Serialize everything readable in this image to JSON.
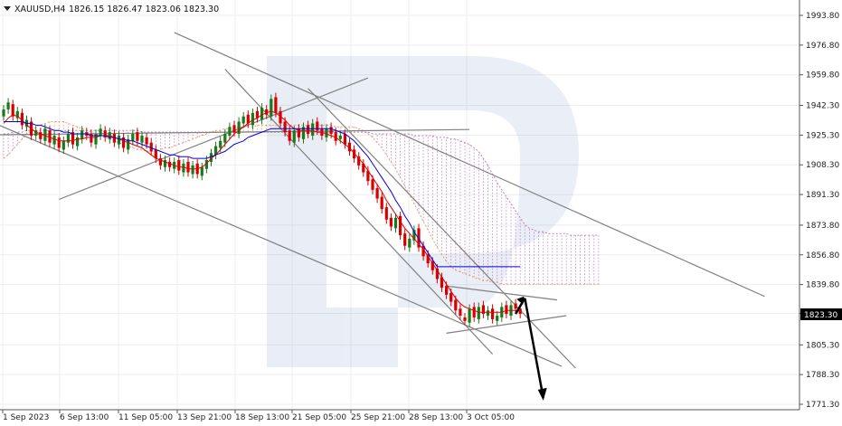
{
  "header": {
    "symbol": "XAUUSD,H4",
    "ohlc": "1826.15 1826.47 1823.06 1823.30"
  },
  "chart_data": {
    "type": "candlestick",
    "symbol": "XAUUSD",
    "timeframe": "H4",
    "ylim": [
      1766.0,
      2002.0
    ],
    "y_ticks": [
      "1993.80",
      "1976.80",
      "1959.80",
      "1942.30",
      "1925.30",
      "1908.30",
      "1891.30",
      "1873.80",
      "1856.80",
      "1839.80",
      "1823.30",
      "1805.30",
      "1788.30",
      "1771.30"
    ],
    "x_ticks": [
      "1 Sep 2023",
      "6 Sep 13:00",
      "11 Sep 05:00",
      "13 Sep 21:00",
      "18 Sep 13:00",
      "21 Sep 05:00",
      "25 Sep 21:00",
      "28 Sep 13:00",
      "3 Oct 05:00"
    ],
    "current_price": "1823.30",
    "grid": true,
    "colors": {
      "bull": "#1a7a1a",
      "bear": "#d60000",
      "tenkan": "#e00000",
      "kijun": "#0000e0",
      "span_a": "#e8a070",
      "span_b": "#c080c0",
      "trendline": "#808080",
      "arrow": "#000000"
    },
    "candles_close": [
      1940,
      1944,
      1936,
      1939,
      1931,
      1934,
      1925,
      1928,
      1923,
      1929,
      1921,
      1925,
      1918,
      1922,
      1926,
      1920,
      1924,
      1928,
      1925,
      1921,
      1926,
      1929,
      1924,
      1927,
      1921,
      1925,
      1918,
      1923,
      1926,
      1922,
      1925,
      1920,
      1916,
      1912,
      1908,
      1911,
      1907,
      1910,
      1905,
      1909,
      1904,
      1908,
      1903,
      1907,
      1911,
      1915,
      1919,
      1922,
      1926,
      1930,
      1927,
      1933,
      1936,
      1932,
      1938,
      1935,
      1941,
      1937,
      1946,
      1938,
      1932,
      1927,
      1922,
      1928,
      1924,
      1930,
      1926,
      1932,
      1928,
      1925,
      1929,
      1926,
      1922,
      1925,
      1920,
      1916,
      1912,
      1908,
      1904,
      1899,
      1894,
      1889,
      1883,
      1877,
      1873,
      1878,
      1868,
      1862,
      1866,
      1871,
      1861,
      1856,
      1852,
      1848,
      1843,
      1838,
      1834,
      1830,
      1825,
      1822,
      1819,
      1826,
      1821,
      1827,
      1823,
      1825,
      1820,
      1822,
      1827,
      1823,
      1828,
      1826,
      1823
    ],
    "candles_open": [
      1936,
      1940,
      1943,
      1935,
      1938,
      1930,
      1933,
      1925,
      1927,
      1922,
      1928,
      1920,
      1924,
      1917,
      1921,
      1927,
      1919,
      1923,
      1927,
      1926,
      1920,
      1925,
      1928,
      1923,
      1926,
      1920,
      1924,
      1917,
      1922,
      1927,
      1921,
      1924,
      1921,
      1917,
      1912,
      1907,
      1910,
      1906,
      1911,
      1904,
      1910,
      1903,
      1909,
      1902,
      1906,
      1910,
      1914,
      1918,
      1921,
      1925,
      1931,
      1926,
      1932,
      1937,
      1931,
      1939,
      1934,
      1940,
      1936,
      1947,
      1939,
      1933,
      1928,
      1921,
      1929,
      1923,
      1931,
      1925,
      1933,
      1929,
      1924,
      1930,
      1927,
      1923,
      1926,
      1921,
      1917,
      1913,
      1909,
      1905,
      1900,
      1895,
      1890,
      1884,
      1878,
      1872,
      1879,
      1869,
      1861,
      1865,
      1872,
      1862,
      1857,
      1853,
      1849,
      1844,
      1839,
      1835,
      1831,
      1826,
      1821,
      1818,
      1827,
      1820,
      1828,
      1822,
      1826,
      1819,
      1821,
      1828,
      1822,
      1829,
      1826
    ],
    "tenkan": [
      1932,
      1935,
      1937,
      1936,
      1934,
      1931,
      1929,
      1927,
      1926,
      1925,
      1924,
      1923,
      1922,
      1922,
      1922,
      1922,
      1923,
      1923,
      1924,
      1924,
      1924,
      1925,
      1925,
      1925,
      1924,
      1923,
      1922,
      1921,
      1920,
      1919,
      1918,
      1916,
      1914,
      1912,
      1911,
      1910,
      1909,
      1908,
      1907,
      1907,
      1906,
      1906,
      1906,
      1907,
      1909,
      1912,
      1914,
      1917,
      1920,
      1923,
      1926,
      1928,
      1930,
      1932,
      1934,
      1935,
      1937,
      1938,
      1939,
      1938,
      1936,
      1934,
      1931,
      1929,
      1928,
      1928,
      1928,
      1928,
      1927,
      1927,
      1926,
      1925,
      1924,
      1922,
      1920,
      1918,
      1915,
      1912,
      1909,
      1905,
      1901,
      1897,
      1893,
      1888,
      1884,
      1880,
      1876,
      1872,
      1869,
      1866,
      1863,
      1860,
      1856,
      1852,
      1848,
      1844,
      1840,
      1836,
      1832,
      1829,
      1827,
      1826,
      1825,
      1824,
      1824,
      1824,
      1824,
      1824,
      1824,
      1825,
      1825,
      1825,
      1825
    ],
    "kijun": [
      1933,
      1933,
      1933,
      1933,
      1933,
      1932,
      1932,
      1931,
      1931,
      1930,
      1929,
      1928,
      1928,
      1927,
      1927,
      1926,
      1926,
      1926,
      1926,
      1925,
      1925,
      1925,
      1925,
      1924,
      1924,
      1923,
      1923,
      1922,
      1922,
      1921,
      1920,
      1919,
      1918,
      1917,
      1916,
      1915,
      1914,
      1914,
      1913,
      1913,
      1913,
      1912,
      1912,
      1912,
      1912,
      1913,
      1914,
      1915,
      1916,
      1918,
      1920,
      1921,
      1922,
      1924,
      1925,
      1926,
      1927,
      1928,
      1929,
      1929,
      1929,
      1929,
      1929,
      1929,
      1929,
      1929,
      1929,
      1929,
      1929,
      1929,
      1929,
      1929,
      1928,
      1927,
      1926,
      1924,
      1922,
      1919,
      1916,
      1913,
      1909,
      1905,
      1901,
      1897,
      1893,
      1888,
      1884,
      1879,
      1875,
      1870,
      1866,
      1862,
      1858,
      1854,
      1850,
      1850,
      1850,
      1850,
      1850,
      1850,
      1850,
      1850,
      1850,
      1850,
      1850,
      1850,
      1850,
      1850,
      1850,
      1850,
      1850,
      1850,
      1850
    ],
    "span_a": [
      1912,
      1914,
      1917,
      1920,
      1923,
      1926,
      1928,
      1930,
      1931,
      1932,
      1933,
      1933,
      1933,
      1933,
      1932,
      1931,
      1930,
      1929,
      1928,
      1927,
      1926,
      1925,
      1924,
      1923,
      1922,
      1921,
      1920,
      1919,
      1918,
      1917,
      1917,
      1916,
      1916,
      1916,
      1917,
      1918,
      1918,
      1919,
      1920,
      1921,
      1922,
      1923,
      1924,
      1925,
      1926,
      1927,
      1928,
      1928,
      1929,
      1929,
      1929,
      1930,
      1930,
      1930,
      1930,
      1931,
      1931,
      1931,
      1931,
      1931,
      1931,
      1931,
      1931,
      1931,
      1931,
      1931,
      1931,
      1931,
      1931,
      1931,
      1931,
      1931,
      1930,
      1930,
      1930,
      1930,
      1930,
      1929,
      1928,
      1926,
      1924,
      1921,
      1918,
      1914,
      1910,
      1906,
      1901,
      1896,
      1891,
      1886,
      1881,
      1876,
      1871,
      1866,
      1861,
      1857,
      1853,
      1850,
      1848,
      1847,
      1846,
      1845,
      1844,
      1843,
      1842,
      1842,
      1841,
      1841,
      1840,
      1840,
      1840,
      1840,
      1840,
      1840,
      1840,
      1840,
      1840,
      1840,
      1840,
      1840,
      1840,
      1840,
      1840,
      1840,
      1840,
      1840,
      1840,
      1840,
      1840,
      1840
    ],
    "span_b": [
      1926,
      1926,
      1927,
      1927,
      1927,
      1928,
      1928,
      1928,
      1928,
      1928,
      1928,
      1928,
      1928,
      1928,
      1928,
      1928,
      1928,
      1928,
      1928,
      1928,
      1928,
      1928,
      1928,
      1928,
      1928,
      1928,
      1928,
      1928,
      1928,
      1928,
      1927,
      1927,
      1927,
      1927,
      1927,
      1927,
      1927,
      1927,
      1927,
      1927,
      1927,
      1927,
      1927,
      1927,
      1927,
      1927,
      1927,
      1927,
      1927,
      1927,
      1927,
      1927,
      1927,
      1927,
      1927,
      1927,
      1927,
      1927,
      1927,
      1927,
      1927,
      1927,
      1927,
      1927,
      1927,
      1927,
      1927,
      1927,
      1927,
      1927,
      1927,
      1927,
      1927,
      1927,
      1927,
      1927,
      1927,
      1927,
      1927,
      1927,
      1926,
      1926,
      1926,
      1926,
      1926,
      1926,
      1926,
      1926,
      1926,
      1925,
      1925,
      1925,
      1925,
      1925,
      1924,
      1924,
      1924,
      1923,
      1923,
      1922,
      1921,
      1920,
      1918,
      1916,
      1912,
      1908,
      1903,
      1898,
      1894,
      1890,
      1886,
      1882,
      1878,
      1874,
      1872,
      1871,
      1870,
      1870,
      1869,
      1869,
      1869,
      1869,
      1869,
      1868,
      1868,
      1868,
      1868,
      1868,
      1868,
      1868
    ]
  }
}
